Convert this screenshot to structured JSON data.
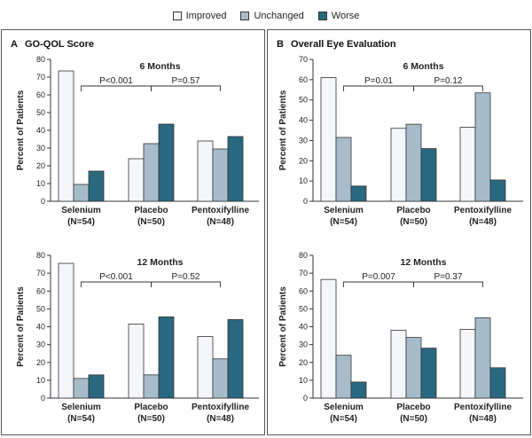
{
  "legend": {
    "items": [
      {
        "label": "Improved",
        "color": "#f4f6f9"
      },
      {
        "label": "Unchanged",
        "color": "#a7bccb"
      },
      {
        "label": "Worse",
        "color": "#2a6880"
      }
    ]
  },
  "panels": [
    {
      "letter": "A",
      "title": "GO-QOL Score"
    },
    {
      "letter": "B",
      "title": "Overall Eye Evaluation"
    }
  ],
  "chart_data": [
    {
      "type": "bar",
      "panel": "A",
      "title": "6 Months",
      "ylabel": "Percent of Patients",
      "ylim": [
        0,
        80
      ],
      "yticks": [
        0,
        10,
        20,
        30,
        40,
        50,
        60,
        70,
        80
      ],
      "categories": [
        {
          "name": "Selenium",
          "n": "(N=54)"
        },
        {
          "name": "Placebo",
          "n": "(N=50)"
        },
        {
          "name": "Pentoxifylline",
          "n": "(N=48)"
        }
      ],
      "series": [
        {
          "name": "Improved",
          "values": [
            73.5,
            24,
            34
          ]
        },
        {
          "name": "Unchanged",
          "values": [
            9.5,
            32.5,
            29.5
          ]
        },
        {
          "name": "Worse",
          "values": [
            17,
            43.5,
            36.5
          ]
        }
      ],
      "comparisons": [
        {
          "from": 0,
          "to": 1,
          "label": "P<0.001"
        },
        {
          "from": 1,
          "to": 2,
          "label": "P=0.57"
        }
      ]
    },
    {
      "type": "bar",
      "panel": "A",
      "title": "12 Months",
      "ylabel": "Percent of Patients",
      "ylim": [
        0,
        80
      ],
      "yticks": [
        0,
        10,
        20,
        30,
        40,
        50,
        60,
        70,
        80
      ],
      "categories": [
        {
          "name": "Selenium",
          "n": "(N=54)"
        },
        {
          "name": "Placebo",
          "n": "(N=50)"
        },
        {
          "name": "Pentoxifylline",
          "n": "(N=48)"
        }
      ],
      "series": [
        {
          "name": "Improved",
          "values": [
            75.5,
            41.5,
            34.5
          ]
        },
        {
          "name": "Unchanged",
          "values": [
            11,
            13,
            22
          ]
        },
        {
          "name": "Worse",
          "values": [
            13,
            45.5,
            44
          ]
        }
      ],
      "comparisons": [
        {
          "from": 0,
          "to": 1,
          "label": "P<0.001"
        },
        {
          "from": 1,
          "to": 2,
          "label": "P=0.52"
        }
      ]
    },
    {
      "type": "bar",
      "panel": "B",
      "title": "6 Months",
      "ylabel": "Percent of Patients",
      "ylim": [
        0,
        70
      ],
      "yticks": [
        0,
        10,
        20,
        30,
        40,
        50,
        60,
        70
      ],
      "categories": [
        {
          "name": "Selenium",
          "n": "(N=54)"
        },
        {
          "name": "Placebo",
          "n": "(N=50)"
        },
        {
          "name": "Pentoxifylline",
          "n": "(N=48)"
        }
      ],
      "series": [
        {
          "name": "Improved",
          "values": [
            61,
            36,
            36.5
          ]
        },
        {
          "name": "Unchanged",
          "values": [
            31.5,
            38,
            53.5
          ]
        },
        {
          "name": "Worse",
          "values": [
            7.5,
            26,
            10.5
          ]
        }
      ],
      "comparisons": [
        {
          "from": 0,
          "to": 1,
          "label": "P=0.01"
        },
        {
          "from": 1,
          "to": 2,
          "label": "P=0.12"
        }
      ]
    },
    {
      "type": "bar",
      "panel": "B",
      "title": "12 Months",
      "ylabel": "Percent of Patients",
      "ylim": [
        0,
        80
      ],
      "yticks": [
        0,
        10,
        20,
        30,
        40,
        50,
        60,
        70,
        80
      ],
      "categories": [
        {
          "name": "Selenium",
          "n": "(N=54)"
        },
        {
          "name": "Placebo",
          "n": "(N=50)"
        },
        {
          "name": "Pentoxifylline",
          "n": "(N=48)"
        }
      ],
      "series": [
        {
          "name": "Improved",
          "values": [
            66.5,
            38,
            38.5
          ]
        },
        {
          "name": "Unchanged",
          "values": [
            24,
            34,
            45
          ]
        },
        {
          "name": "Worse",
          "values": [
            9,
            28,
            17
          ]
        }
      ],
      "comparisons": [
        {
          "from": 0,
          "to": 1,
          "label": "P=0.007"
        },
        {
          "from": 1,
          "to": 2,
          "label": "P=0.37"
        }
      ]
    }
  ]
}
